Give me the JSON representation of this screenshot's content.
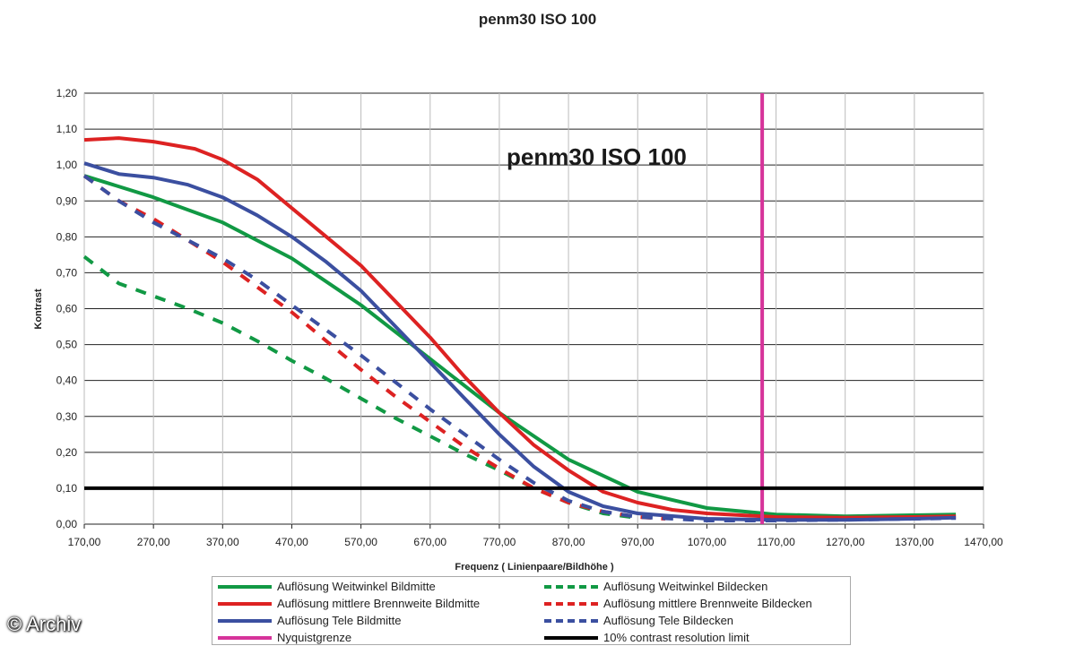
{
  "watermark": "© Archiv",
  "chart_data": {
    "type": "line",
    "title": "penm30 ISO 100",
    "inner_title": "penm30 ISO 100",
    "xlabel": "Frequenz ( Linienpaare/Bildhöhe )",
    "ylabel": "Kontrast",
    "xlim": [
      170,
      1470
    ],
    "ylim": [
      0,
      1.2
    ],
    "xticks": [
      "170,00",
      "270,00",
      "370,00",
      "470,00",
      "570,00",
      "670,00",
      "770,00",
      "870,00",
      "970,00",
      "1070,00",
      "1170,00",
      "1270,00",
      "1370,00",
      "1470,00"
    ],
    "yticks": [
      "0,00",
      "0,10",
      "0,20",
      "0,30",
      "0,40",
      "0,50",
      "0,60",
      "0,70",
      "0,80",
      "0,90",
      "1,00",
      "1,10",
      "1,20"
    ],
    "grid": "horizontal",
    "legend_position": "bottom",
    "series": [
      {
        "name": "Auflösung Weitwinkel Bildmitte",
        "color": "#119944",
        "style": "solid",
        "points": [
          [
            170,
            0.97
          ],
          [
            270,
            0.91
          ],
          [
            370,
            0.84
          ],
          [
            470,
            0.74
          ],
          [
            570,
            0.61
          ],
          [
            670,
            0.46
          ],
          [
            770,
            0.31
          ],
          [
            870,
            0.18
          ],
          [
            970,
            0.09
          ],
          [
            1070,
            0.045
          ],
          [
            1170,
            0.027
          ],
          [
            1270,
            0.022
          ],
          [
            1370,
            0.025
          ],
          [
            1430,
            0.027
          ]
        ]
      },
      {
        "name": "Auflösung mittlere Brennweite Bildmitte",
        "color": "#dd2222",
        "style": "solid",
        "points": [
          [
            170,
            1.07
          ],
          [
            220,
            1.075
          ],
          [
            270,
            1.065
          ],
          [
            330,
            1.045
          ],
          [
            370,
            1.015
          ],
          [
            420,
            0.96
          ],
          [
            470,
            0.88
          ],
          [
            520,
            0.8
          ],
          [
            570,
            0.72
          ],
          [
            620,
            0.62
          ],
          [
            670,
            0.52
          ],
          [
            720,
            0.41
          ],
          [
            770,
            0.31
          ],
          [
            820,
            0.22
          ],
          [
            870,
            0.15
          ],
          [
            920,
            0.09
          ],
          [
            970,
            0.06
          ],
          [
            1020,
            0.04
          ],
          [
            1070,
            0.03
          ],
          [
            1170,
            0.02
          ],
          [
            1270,
            0.018
          ],
          [
            1370,
            0.02
          ],
          [
            1430,
            0.022
          ]
        ]
      },
      {
        "name": "Auflösung Tele Bildmitte",
        "color": "#3b4fa0",
        "style": "solid",
        "points": [
          [
            170,
            1.005
          ],
          [
            220,
            0.975
          ],
          [
            270,
            0.965
          ],
          [
            320,
            0.945
          ],
          [
            370,
            0.91
          ],
          [
            420,
            0.86
          ],
          [
            470,
            0.8
          ],
          [
            520,
            0.73
          ],
          [
            570,
            0.65
          ],
          [
            620,
            0.55
          ],
          [
            670,
            0.45
          ],
          [
            720,
            0.35
          ],
          [
            770,
            0.25
          ],
          [
            820,
            0.16
          ],
          [
            870,
            0.09
          ],
          [
            920,
            0.05
          ],
          [
            970,
            0.03
          ],
          [
            1070,
            0.015
          ],
          [
            1170,
            0.012
          ],
          [
            1270,
            0.012
          ],
          [
            1370,
            0.015
          ],
          [
            1430,
            0.018
          ]
        ]
      },
      {
        "name": "Auflösung Weitwinkel Bildecken",
        "color": "#119944",
        "style": "dashed",
        "points": [
          [
            170,
            0.745
          ],
          [
            220,
            0.67
          ],
          [
            270,
            0.635
          ],
          [
            320,
            0.6
          ],
          [
            370,
            0.56
          ],
          [
            420,
            0.51
          ],
          [
            470,
            0.455
          ],
          [
            520,
            0.405
          ],
          [
            570,
            0.35
          ],
          [
            620,
            0.295
          ],
          [
            670,
            0.245
          ],
          [
            720,
            0.195
          ],
          [
            770,
            0.15
          ],
          [
            820,
            0.1
          ],
          [
            870,
            0.06
          ],
          [
            920,
            0.03
          ],
          [
            960,
            0.02
          ]
        ]
      },
      {
        "name": "Auflösung mittlere Brennweite Bildecken",
        "color": "#dd2222",
        "style": "dashed",
        "points": [
          [
            170,
            0.97
          ],
          [
            220,
            0.9
          ],
          [
            270,
            0.85
          ],
          [
            320,
            0.79
          ],
          [
            370,
            0.73
          ],
          [
            420,
            0.66
          ],
          [
            470,
            0.59
          ],
          [
            520,
            0.51
          ],
          [
            570,
            0.43
          ],
          [
            620,
            0.355
          ],
          [
            670,
            0.285
          ],
          [
            720,
            0.215
          ],
          [
            770,
            0.155
          ],
          [
            820,
            0.1
          ],
          [
            870,
            0.06
          ],
          [
            920,
            0.035
          ],
          [
            970,
            0.02
          ],
          [
            1010,
            0.015
          ]
        ]
      },
      {
        "name": "Auflösung Tele Bildecken",
        "color": "#3b4fa0",
        "style": "dashed",
        "points": [
          [
            170,
            0.97
          ],
          [
            220,
            0.9
          ],
          [
            270,
            0.84
          ],
          [
            320,
            0.79
          ],
          [
            370,
            0.74
          ],
          [
            420,
            0.68
          ],
          [
            470,
            0.61
          ],
          [
            520,
            0.54
          ],
          [
            570,
            0.47
          ],
          [
            620,
            0.395
          ],
          [
            670,
            0.32
          ],
          [
            720,
            0.25
          ],
          [
            770,
            0.18
          ],
          [
            820,
            0.115
          ],
          [
            870,
            0.065
          ],
          [
            920,
            0.035
          ],
          [
            970,
            0.02
          ],
          [
            1070,
            0.01
          ],
          [
            1170,
            0.01
          ],
          [
            1270,
            0.012
          ],
          [
            1370,
            0.015
          ],
          [
            1430,
            0.017
          ]
        ]
      },
      {
        "name": "Nyquistgrenze",
        "color": "#d6339a",
        "style": "solid",
        "points": [
          [
            1150,
            0
          ],
          [
            1150,
            1.2
          ]
        ]
      },
      {
        "name": "10% contrast resolution limit",
        "color": "#000000",
        "style": "solid",
        "points": [
          [
            170,
            0.1
          ],
          [
            1470,
            0.1
          ]
        ]
      }
    ],
    "legend": {
      "left": [
        {
          "label": "Auflösung Weitwinkel Bildmitte",
          "color": "#119944",
          "style": "solid"
        },
        {
          "label": "Auflösung mittlere Brennweite Bildmitte",
          "color": "#dd2222",
          "style": "solid"
        },
        {
          "label": "Auflösung Tele Bildmitte",
          "color": "#3b4fa0",
          "style": "solid"
        },
        {
          "label": "Nyquistgrenze",
          "color": "#d6339a",
          "style": "solid"
        }
      ],
      "right": [
        {
          "label": "Auflösung Weitwinkel Bildecken",
          "color": "#119944",
          "style": "dashed"
        },
        {
          "label": "Auflösung mittlere Brennweite Bildecken",
          "color": "#dd2222",
          "style": "dashed"
        },
        {
          "label": "Auflösung Tele Bildecken",
          "color": "#3b4fa0",
          "style": "dashed"
        },
        {
          "label": "10% contrast resolution limit",
          "color": "#000000",
          "style": "solid"
        }
      ]
    }
  }
}
